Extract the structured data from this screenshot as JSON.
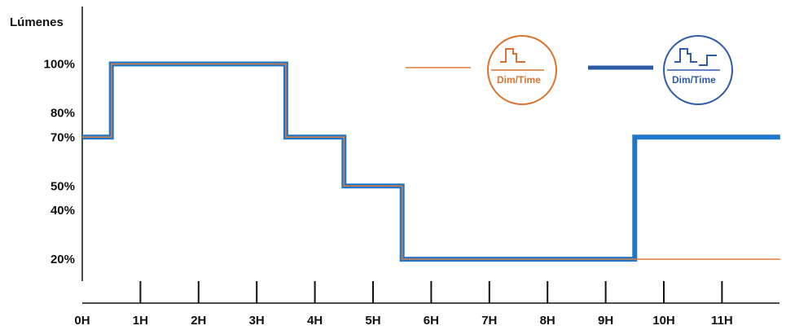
{
  "chart_data": {
    "type": "line",
    "ylabel": "Lúmenes",
    "xlabel": "",
    "title": "",
    "x_ticks": [
      {
        "value": 0,
        "label": "0H"
      },
      {
        "value": 1,
        "label": "1H"
      },
      {
        "value": 2,
        "label": "2H"
      },
      {
        "value": 3,
        "label": "3H"
      },
      {
        "value": 4,
        "label": "4H"
      },
      {
        "value": 5,
        "label": "5H"
      },
      {
        "value": 6,
        "label": "6H"
      },
      {
        "value": 7,
        "label": "7H"
      },
      {
        "value": 8,
        "label": "8H"
      },
      {
        "value": 9,
        "label": "9H"
      },
      {
        "value": 10,
        "label": "10H"
      },
      {
        "value": 11,
        "label": "11H"
      }
    ],
    "y_ticks": [
      {
        "value": 20,
        "label": "20%"
      },
      {
        "value": 40,
        "label": "40%"
      },
      {
        "value": 50,
        "label": "50%"
      },
      {
        "value": 70,
        "label": "70%"
      },
      {
        "value": 80,
        "label": "80%"
      },
      {
        "value": 100,
        "label": "100%"
      }
    ],
    "xlim": [
      0,
      12
    ],
    "ylim": [
      0,
      100
    ],
    "series": [
      {
        "style": "step",
        "color": "#E07B39",
        "x": [
          0,
          0.5,
          0.5,
          3.5,
          3.5,
          4.5,
          4.5,
          5.5,
          5.5,
          12
        ],
        "y": [
          70,
          70,
          100,
          100,
          70,
          70,
          50,
          50,
          20,
          20
        ]
      },
      {
        "style": "step",
        "color": "#1F77C9",
        "x": [
          0,
          0.5,
          0.5,
          3.5,
          3.5,
          4.5,
          4.5,
          5.5,
          5.5,
          9.5,
          9.5,
          12
        ],
        "y": [
          70,
          70,
          100,
          100,
          70,
          70,
          50,
          50,
          20,
          20,
          70,
          70
        ]
      }
    ],
    "legend": {
      "placement": "top-right",
      "entries": [
        {
          "icon": "dim-time-orange-icon",
          "badge_text": "Dim/Time",
          "color": "#E07B39"
        },
        {
          "icon": "dim-time-blue-icon",
          "badge_text": "Dim/Time",
          "color": "#2E5BA8"
        }
      ]
    },
    "grid": false
  }
}
